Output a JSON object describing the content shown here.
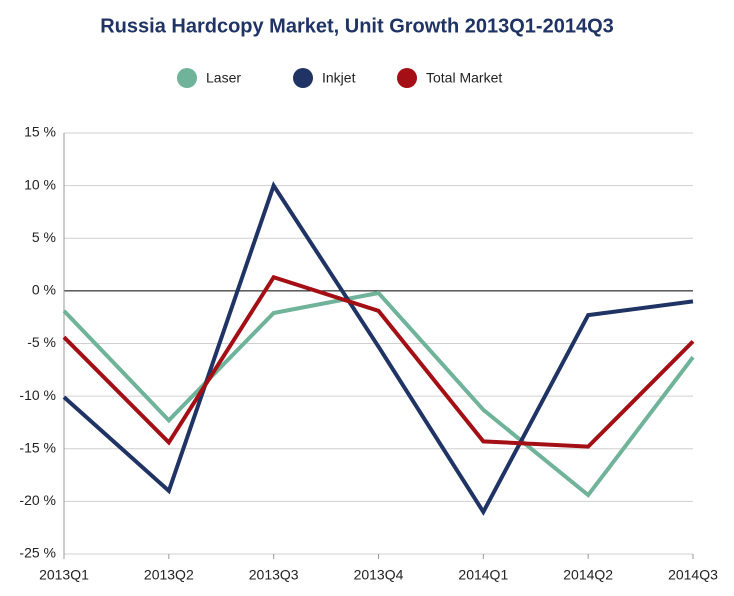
{
  "chart_data": {
    "type": "line",
    "title": "Russia Hardcopy Market, Unit Growth 2013Q1-2014Q3",
    "categories": [
      "2013Q1",
      "2013Q2",
      "2013Q3",
      "2013Q4",
      "2014Q1",
      "2014Q2",
      "2014Q3"
    ],
    "series": [
      {
        "name": "Laser",
        "color": "#6fb39a",
        "values": [
          -1.9,
          -12.3,
          -2.1,
          -0.2,
          -11.3,
          -19.4,
          -6.3
        ]
      },
      {
        "name": "Inkjet",
        "color": "#1f3364",
        "values": [
          -10.1,
          -19.0,
          10.0,
          -5.3,
          -21.0,
          -2.3,
          -1.0
        ]
      },
      {
        "name": "Total Market",
        "color": "#a30f14",
        "values": [
          -4.4,
          -14.4,
          1.3,
          -1.9,
          -14.3,
          -14.8,
          -4.8
        ]
      }
    ],
    "ylim": [
      -25,
      15
    ],
    "yticks": [
      {
        "value": -25,
        "label": "-25 %"
      },
      {
        "value": -20,
        "label": "-20 %"
      },
      {
        "value": -15,
        "label": "-15 %"
      },
      {
        "value": -10,
        "label": "-10 %"
      },
      {
        "value": -5,
        "label": "-5 %"
      },
      {
        "value": 0,
        "label": "0 %"
      },
      {
        "value": 5,
        "label": "5 %"
      },
      {
        "value": 10,
        "label": "10 %"
      },
      {
        "value": 15,
        "label": "15 %"
      }
    ],
    "grid": true,
    "legend": "top"
  }
}
